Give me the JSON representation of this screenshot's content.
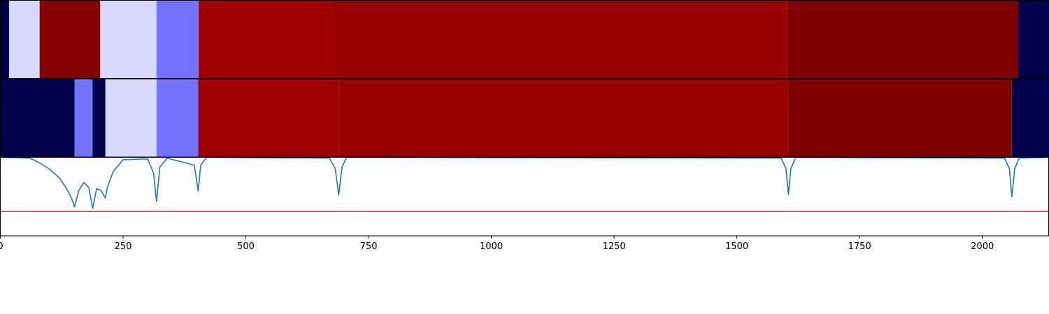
{
  "chart_data": {
    "type": "heatmap",
    "title": "",
    "xlabel": "",
    "ylabel": "",
    "xlim": [
      0,
      2135
    ],
    "x_ticks": [
      0,
      250,
      500,
      750,
      1000,
      1250,
      1500,
      1750,
      2000
    ],
    "x_tick_labels": [
      "0",
      "250",
      "500",
      "750",
      "1000",
      "1250",
      "1500",
      "1750",
      "2000"
    ],
    "grid": false,
    "legend": "none",
    "panels": [
      {
        "type": "heatmap",
        "segments": [
          {
            "x0": 0,
            "x1": 18,
            "color": "#00004c"
          },
          {
            "x0": 18,
            "x1": 80,
            "color": "#d8d8ff"
          },
          {
            "x0": 80,
            "x1": 203,
            "color": "#8a0000"
          },
          {
            "x0": 203,
            "x1": 318,
            "color": "#d8d8ff"
          },
          {
            "x0": 318,
            "x1": 404,
            "color": "#7272ff"
          },
          {
            "x0": 404,
            "x1": 675,
            "color": "#a10000"
          },
          {
            "x0": 675,
            "x1": 1602,
            "color": "#990000"
          },
          {
            "x0": 1602,
            "x1": 2072,
            "color": "#7e0000"
          },
          {
            "x0": 2072,
            "x1": 2135,
            "color": "#00004c"
          }
        ]
      },
      {
        "type": "heatmap",
        "segments": [
          {
            "x0": 0,
            "x1": 151,
            "color": "#00004c"
          },
          {
            "x0": 151,
            "x1": 188,
            "color": "#7272ff"
          },
          {
            "x0": 188,
            "x1": 214,
            "color": "#00004c"
          },
          {
            "x0": 214,
            "x1": 318,
            "color": "#d8d8ff"
          },
          {
            "x0": 318,
            "x1": 403,
            "color": "#7272ff"
          },
          {
            "x0": 403,
            "x1": 689,
            "color": "#a10000"
          },
          {
            "x0": 689,
            "x1": 1605,
            "color": "#990000"
          },
          {
            "x0": 1605,
            "x1": 2060,
            "color": "#7e0000"
          },
          {
            "x0": 2060,
            "x1": 2135,
            "color": "#00004c"
          }
        ]
      },
      {
        "type": "line",
        "ylim": [
          0,
          1
        ],
        "series": [
          {
            "color": "#1f77b4",
            "baseline": 1.0,
            "x": [
              0,
              60,
              80,
              100,
              120,
              135,
              145,
              151,
              160,
              170,
              180,
              188,
              196,
              205,
              214,
              218,
              230,
              250,
              300,
              312,
              318,
              325,
              340,
              395,
              403,
              408,
              420,
              670,
              682,
              689,
              696,
              705,
              1590,
              1600,
              1605,
              1610,
              1620,
              2045,
              2055,
              2060,
              2066,
              2075,
              2135
            ],
            "y": [
              1.0,
              0.99,
              0.93,
              0.85,
              0.74,
              0.6,
              0.48,
              0.37,
              0.58,
              0.68,
              0.62,
              0.35,
              0.6,
              0.58,
              0.48,
              0.62,
              0.82,
              0.97,
              0.98,
              0.8,
              0.44,
              0.88,
              0.99,
              0.9,
              0.57,
              0.9,
              1.0,
              0.99,
              0.86,
              0.52,
              0.88,
              1.0,
              0.99,
              0.86,
              0.53,
              0.86,
              1.0,
              0.99,
              0.86,
              0.5,
              0.86,
              0.99,
              1.0
            ]
          },
          {
            "color": "#d62728",
            "x": [
              0,
              2135
            ],
            "y": [
              0.31,
              0.31
            ]
          }
        ]
      }
    ]
  }
}
